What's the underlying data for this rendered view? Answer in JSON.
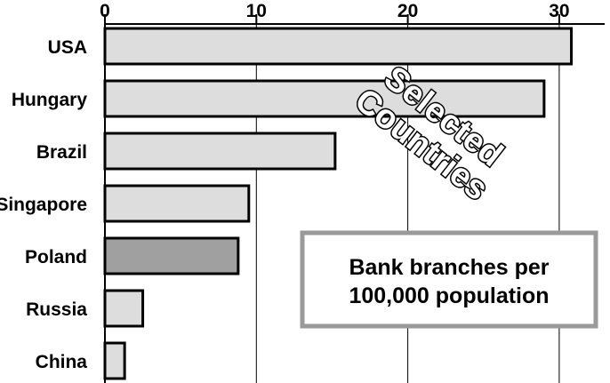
{
  "chart_data": {
    "type": "bar",
    "orientation": "horizontal",
    "categories": [
      "USA",
      "Hungary",
      "Brazil",
      "Singapore",
      "Poland",
      "Russia",
      "China"
    ],
    "values": [
      30.8,
      29,
      15.2,
      9.5,
      8.8,
      2.5,
      1.3
    ],
    "highlighted_category": "Poland",
    "xlim": [
      0,
      33
    ],
    "x_ticks": [
      "0",
      "10",
      "20",
      "30"
    ],
    "x_tick_values": [
      0,
      10,
      20,
      30
    ],
    "grid": true,
    "bar_color": "#dddddd",
    "highlight_color": "#a0a0a0",
    "legend_text": [
      "Bank branches per",
      "100,000 population"
    ],
    "stamp_text": [
      "Selected",
      "Countries"
    ],
    "title": "",
    "xlabel": "",
    "ylabel": ""
  }
}
